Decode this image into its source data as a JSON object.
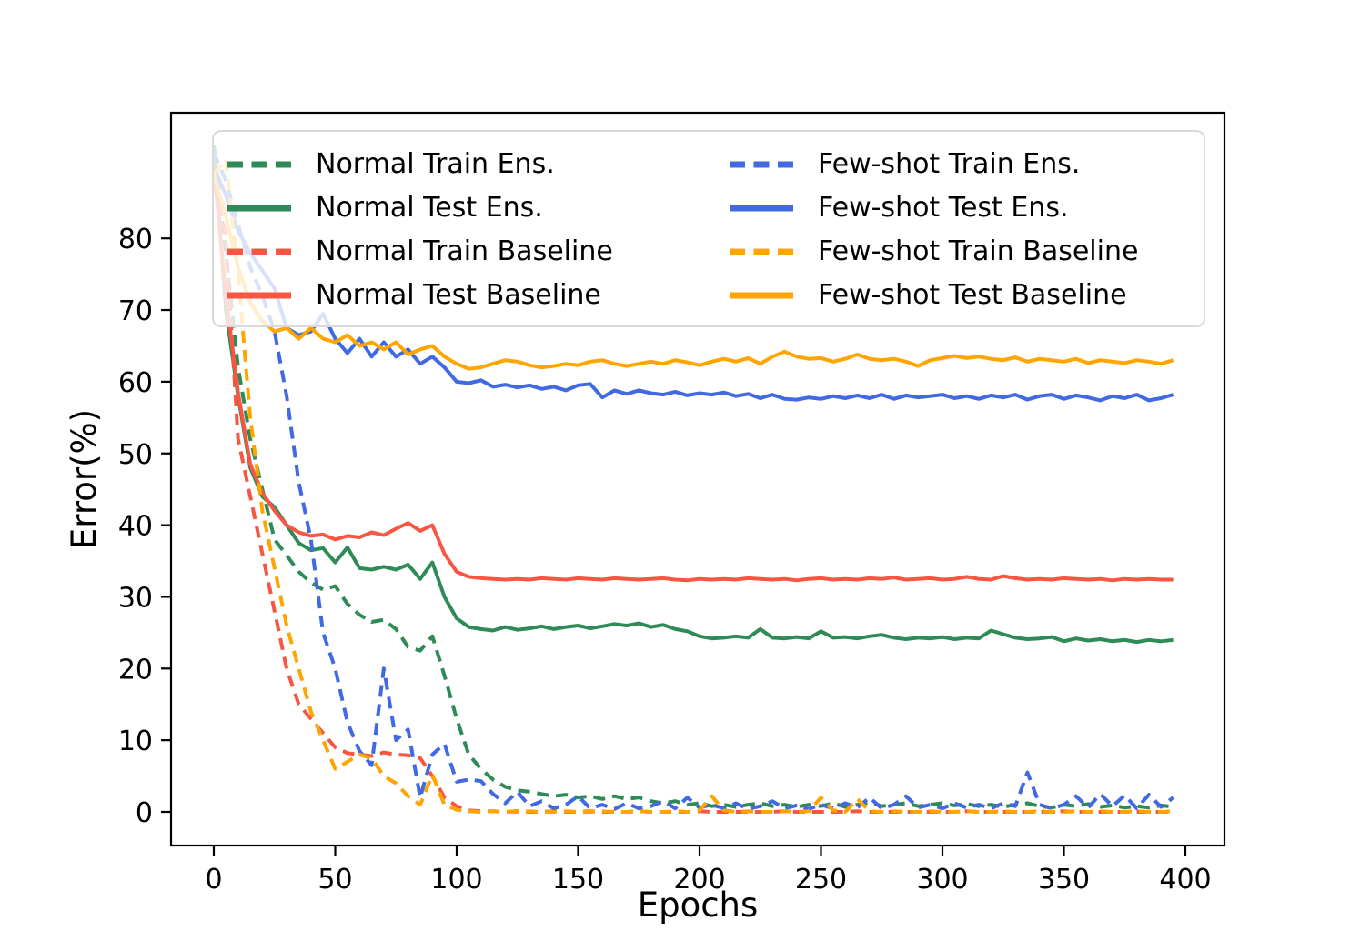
{
  "palette": {
    "green": "#2e8b57",
    "red": "#f75642",
    "blue": "#4169e1",
    "orange": "#ffa500",
    "spine": "#000000"
  },
  "axes": {
    "xlabel": "Epochs",
    "ylabel": "Error(%)",
    "x_ticks": [
      0,
      50,
      100,
      150,
      200,
      250,
      300,
      350,
      400
    ],
    "y_ticks": [
      0,
      10,
      20,
      30,
      40,
      50,
      60,
      70,
      80
    ]
  },
  "legend": {
    "entries": [
      {
        "label": "Normal Train Ens.",
        "color": "green",
        "dash": true
      },
      {
        "label": "Normal Test Ens.",
        "color": "green",
        "dash": false
      },
      {
        "label": "Normal Train Baseline",
        "color": "red",
        "dash": true
      },
      {
        "label": "Normal Test Baseline",
        "color": "red",
        "dash": false
      },
      {
        "label": "Few-shot Train Ens.",
        "color": "blue",
        "dash": true
      },
      {
        "label": "Few-shot Test Ens.",
        "color": "blue",
        "dash": false
      },
      {
        "label": "Few-shot Train Baseline",
        "color": "orange",
        "dash": true
      },
      {
        "label": "Few-shot Test Baseline",
        "color": "orange",
        "dash": false
      }
    ]
  },
  "chart_data": {
    "type": "line",
    "title": "",
    "xlabel": "Epochs",
    "ylabel": "Error(%)",
    "xlim": [
      -18,
      417
    ],
    "ylim": [
      -4.7,
      97.5
    ],
    "grid": false,
    "legend_position": "upper-left, 2 columns",
    "x_step": 5,
    "x": [
      0,
      5,
      10,
      15,
      20,
      25,
      30,
      35,
      40,
      45,
      50,
      55,
      60,
      65,
      70,
      75,
      80,
      85,
      90,
      95,
      100,
      105,
      110,
      115,
      120,
      125,
      130,
      135,
      140,
      145,
      150,
      155,
      160,
      165,
      170,
      175,
      180,
      185,
      190,
      195,
      200,
      205,
      210,
      215,
      220,
      225,
      230,
      235,
      240,
      245,
      250,
      255,
      260,
      265,
      270,
      275,
      280,
      285,
      290,
      295,
      300,
      305,
      310,
      315,
      320,
      325,
      330,
      335,
      340,
      345,
      350,
      355,
      360,
      365,
      370,
      375,
      380,
      385,
      390,
      395
    ],
    "series": [
      {
        "name": "Normal Train Ens.",
        "color": "green",
        "style": "dashed",
        "values": [
          93,
          78,
          62,
          52,
          45,
          38,
          35.8,
          33.5,
          32,
          31,
          31.5,
          29,
          27.5,
          26.5,
          26.8,
          25.5,
          23,
          22.5,
          24.5,
          19,
          13,
          8,
          6,
          4.5,
          3.5,
          3,
          2.8,
          2.5,
          2.2,
          2.4,
          2,
          2.2,
          1.8,
          2.2,
          1.8,
          2,
          1.5,
          1.2,
          1.5,
          1,
          1.2,
          0.8,
          1,
          0.7,
          1,
          1.2,
          0.8,
          1,
          0.7,
          1,
          0.8,
          1.2,
          0.7,
          1,
          1.3,
          0.8,
          1,
          1.2,
          0.8,
          1,
          1.2,
          0.9,
          1.1,
          0.8,
          1,
          0.7,
          1,
          1.2,
          0.8,
          0.6,
          1,
          0.8,
          1.1,
          0.7,
          0.9,
          0.6,
          0.8,
          0.6,
          0.9,
          0.7
        ]
      },
      {
        "name": "Normal Test Ens.",
        "color": "green",
        "style": "solid",
        "values": [
          93,
          70,
          58,
          48,
          44,
          42.5,
          40,
          37.5,
          36.5,
          36.8,
          34.8,
          36.9,
          34,
          33.8,
          34.2,
          33.8,
          34.5,
          32.5,
          34.8,
          30,
          27,
          25.8,
          25.5,
          25.3,
          25.8,
          25.4,
          25.6,
          25.9,
          25.5,
          25.8,
          26,
          25.6,
          25.9,
          26.2,
          26,
          26.3,
          25.8,
          26.1,
          25.5,
          25.2,
          24.5,
          24.2,
          24.3,
          24.5,
          24.3,
          25.5,
          24.3,
          24.2,
          24.4,
          24.2,
          25.2,
          24.3,
          24.4,
          24.2,
          24.5,
          24.7,
          24.3,
          24.1,
          24.3,
          24.2,
          24.4,
          24.1,
          24.3,
          24.2,
          25.3,
          24.8,
          24.3,
          24.1,
          24.2,
          24.4,
          23.8,
          24.2,
          23.9,
          24.1,
          23.8,
          24,
          23.7,
          24,
          23.8,
          24
        ]
      },
      {
        "name": "Normal Train Baseline",
        "color": "red",
        "style": "dashed",
        "values": [
          90,
          80,
          52,
          44,
          36,
          28,
          20,
          15,
          13,
          11,
          9,
          8.2,
          8,
          7.8,
          8.3,
          8,
          7.9,
          7.5,
          5,
          2,
          0.8,
          0.2,
          0.1,
          0.1,
          0,
          0.1,
          0,
          0,
          0.1,
          0,
          0,
          0.1,
          0,
          0,
          0,
          0.1,
          0,
          0,
          0,
          0,
          0.1,
          0,
          0,
          0,
          0,
          0,
          0,
          0.1,
          0,
          0,
          0,
          0,
          0,
          0.1,
          0,
          0,
          0,
          0,
          0,
          0,
          0,
          0,
          0.1,
          0,
          0,
          0,
          0,
          0,
          0,
          0,
          0.1,
          0,
          0,
          0,
          0,
          0,
          0,
          0,
          0,
          0
        ]
      },
      {
        "name": "Normal Test Baseline",
        "color": "red",
        "style": "solid",
        "values": [
          90,
          72,
          58.5,
          48.5,
          44.5,
          42,
          40,
          39,
          38.5,
          38.7,
          38,
          38.5,
          38.3,
          39,
          38.6,
          39.5,
          40.3,
          39.2,
          40,
          36,
          33.5,
          32.8,
          32.6,
          32.5,
          32.4,
          32.5,
          32.4,
          32.6,
          32.5,
          32.4,
          32.6,
          32.5,
          32.4,
          32.6,
          32.5,
          32.4,
          32.5,
          32.6,
          32.4,
          32.3,
          32.5,
          32.4,
          32.5,
          32.4,
          32.6,
          32.5,
          32.4,
          32.5,
          32.3,
          32.5,
          32.6,
          32.4,
          32.5,
          32.4,
          32.6,
          32.5,
          32.7,
          32.4,
          32.5,
          32.6,
          32.4,
          32.5,
          32.8,
          32.5,
          32.4,
          32.9,
          32.6,
          32.4,
          32.5,
          32.4,
          32.6,
          32.5,
          32.4,
          32.5,
          32.3,
          32.5,
          32.4,
          32.5,
          32.4,
          32.4
        ]
      },
      {
        "name": "Few-shot Train Ens.",
        "color": "blue",
        "style": "dashed",
        "values": [
          92,
          88,
          82,
          76,
          72,
          67,
          58,
          46,
          38,
          25,
          20,
          12.5,
          8.5,
          6.5,
          20,
          10,
          11.5,
          2,
          8,
          9.5,
          4.2,
          4.5,
          4.3,
          2.5,
          1.2,
          2.8,
          0.8,
          1.5,
          0.5,
          1,
          2.2,
          0.5,
          1,
          0.4,
          1.2,
          0.5,
          0.8,
          1.5,
          0.5,
          2,
          0.6,
          1,
          0.5,
          1.2,
          0.4,
          0.8,
          1.5,
          0.5,
          0.9,
          0.4,
          1,
          0.5,
          1.2,
          0.6,
          2,
          0.5,
          1,
          2.2,
          0.6,
          1,
          0.5,
          1.2,
          0.6,
          1,
          0.5,
          1.2,
          0.8,
          5.5,
          1,
          0.5,
          1,
          2.2,
          0.6,
          2.5,
          0.8,
          2.3,
          0.5,
          2.4,
          0.7,
          2
        ]
      },
      {
        "name": "Few-shot Test Ens.",
        "color": "blue",
        "style": "solid",
        "values": [
          90,
          86,
          81,
          78,
          75.5,
          73,
          67.5,
          66.5,
          67,
          69.5,
          66,
          64,
          66,
          63.5,
          65.5,
          63.5,
          64.5,
          62.5,
          63.5,
          62,
          60,
          59.8,
          60.2,
          59.3,
          59.6,
          59.2,
          59.5,
          59,
          59.3,
          58.8,
          59.5,
          59.7,
          57.8,
          58.8,
          58.3,
          58.8,
          58.4,
          58.2,
          58.6,
          58.1,
          58.4,
          58.2,
          58.5,
          58,
          58.3,
          57.7,
          58.2,
          57.6,
          57.5,
          57.8,
          57.6,
          58,
          57.7,
          58.1,
          57.7,
          58.2,
          57.6,
          58.1,
          57.8,
          58,
          58.2,
          57.7,
          58,
          57.6,
          58.1,
          57.8,
          58.2,
          57.5,
          58,
          58.2,
          57.6,
          58.1,
          57.8,
          57.4,
          58,
          57.7,
          58.2,
          57.4,
          57.7,
          58.2
        ]
      },
      {
        "name": "Few-shot Train Baseline",
        "color": "orange",
        "style": "dashed",
        "values": [
          89,
          91,
          75,
          55,
          42,
          34,
          26,
          20,
          14,
          10,
          6,
          7,
          8,
          7.5,
          5,
          4,
          2.2,
          1,
          5.2,
          1,
          0.3,
          0.1,
          0,
          0.1,
          0,
          0,
          0.1,
          0,
          0,
          0.1,
          0,
          0,
          0.1,
          0,
          0,
          0.1,
          0,
          0,
          0.1,
          0,
          0.2,
          2.2,
          0.2,
          0,
          0.1,
          0,
          0,
          0.1,
          0,
          0.1,
          2,
          0.2,
          0,
          1.8,
          0.1,
          0,
          0.1,
          0,
          0,
          0.1,
          0,
          0,
          0.1,
          0,
          0,
          0.1,
          0,
          0,
          0.1,
          0,
          0,
          0.1,
          0,
          0.1,
          0,
          0,
          0.1,
          0,
          0,
          0.1
        ]
      },
      {
        "name": "Few-shot Test Baseline",
        "color": "orange",
        "style": "solid",
        "values": [
          89,
          83,
          76,
          71,
          68.5,
          67,
          67.5,
          66,
          67.5,
          66,
          65.5,
          66.5,
          65,
          65.5,
          64.5,
          65.5,
          63.8,
          64.5,
          65,
          63.5,
          62.5,
          61.8,
          62,
          62.5,
          63,
          62.8,
          62.3,
          62,
          62.2,
          62.5,
          62.3,
          62.8,
          63,
          62.5,
          62.2,
          62.5,
          62.8,
          62.5,
          63,
          62.7,
          62.3,
          62.8,
          63.2,
          62.8,
          63.3,
          62.5,
          63.5,
          64.2,
          63.5,
          63.2,
          63.3,
          62.8,
          63.2,
          63.8,
          63.2,
          63,
          63.2,
          62.8,
          62.2,
          63,
          63.3,
          63.6,
          63.3,
          63.5,
          63.2,
          63,
          63.4,
          62.8,
          63.2,
          63,
          62.8,
          63.2,
          62.6,
          63,
          62.8,
          62.6,
          63,
          62.8,
          62.5,
          63
        ]
      }
    ]
  }
}
